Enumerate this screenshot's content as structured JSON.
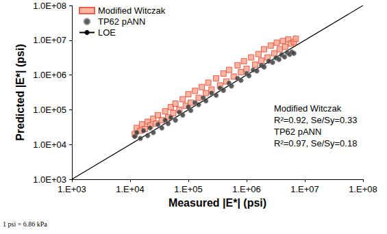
{
  "chart_data": {
    "type": "scatter",
    "x_label": "Measured |E*| (psi)",
    "y_label": "Predicted |E*| (psi)",
    "log": true,
    "grid": false,
    "legend": "top-left",
    "xlim": [
      1000,
      100000000
    ],
    "ylim": [
      1000,
      100000000
    ],
    "xticks": [
      {
        "value": 1000,
        "label": "1.E+03"
      },
      {
        "value": 10000,
        "label": "1.E+04"
      },
      {
        "value": 100000,
        "label": "1.E+05"
      },
      {
        "value": 1000000,
        "label": "1.E+06"
      },
      {
        "value": 10000000,
        "label": "1.E+07"
      },
      {
        "value": 100000000,
        "label": "1.E+08"
      }
    ],
    "yticks": [
      {
        "value": 1000,
        "label": "1.0E+03"
      },
      {
        "value": 10000,
        "label": "1.0E+04"
      },
      {
        "value": 100000,
        "label": "1.0E+05"
      },
      {
        "value": 1000000,
        "label": "1.0E+06"
      },
      {
        "value": 10000000,
        "label": "1.0E+07"
      },
      {
        "value": 100000000,
        "label": "1.0E+08"
      }
    ],
    "series": [
      {
        "name": "Modified Witczak",
        "type": "scatter",
        "marker": "square",
        "color": "#f9a48c",
        "x": [
          12000,
          13000,
          15000,
          16000,
          18000,
          20000,
          22000,
          25000,
          28000,
          30000,
          35000,
          40000,
          45000,
          50000,
          55000,
          60000,
          70000,
          80000,
          90000,
          100000,
          110000,
          130000,
          150000,
          170000,
          200000,
          220000,
          250000,
          300000,
          350000,
          400000,
          450000,
          500000,
          600000,
          700000,
          800000,
          900000,
          1000000,
          1200000,
          1400000,
          1600000,
          1800000,
          2000000,
          2300000,
          2600000,
          3000000,
          3300000,
          3700000,
          4200000,
          4600000,
          5200000,
          5800000,
          6500000,
          7000000
        ],
        "values": [
          20000,
          30000,
          25000,
          38000,
          28000,
          45000,
          35000,
          55000,
          40000,
          70000,
          50000,
          90000,
          60000,
          120000,
          80000,
          150000,
          100000,
          200000,
          130000,
          280000,
          160000,
          350000,
          220000,
          450000,
          300000,
          600000,
          380000,
          800000,
          500000,
          1100000,
          650000,
          1400000,
          900000,
          1900000,
          1200000,
          2500000,
          1500000,
          3200000,
          2000000,
          4000000,
          2600000,
          5500000,
          3200000,
          7000000,
          4200000,
          8500000,
          5500000,
          9500000,
          6500000,
          10500000,
          8000000,
          9000000,
          11000000
        ]
      },
      {
        "name": "TP62 pANN",
        "type": "scatter",
        "marker": "circle",
        "color": "#333333",
        "x": [
          12000,
          13000,
          15000,
          17000,
          20000,
          22000,
          25000,
          30000,
          35000,
          40000,
          45000,
          50000,
          60000,
          70000,
          80000,
          100000,
          110000,
          130000,
          150000,
          180000,
          200000,
          250000,
          300000,
          350000,
          400000,
          500000,
          550000,
          700000,
          800000,
          1000000,
          1100000,
          1300000,
          1500000,
          1800000,
          2000000,
          2400000,
          2800000,
          3200000,
          3600000,
          4000000,
          4500000,
          5000000,
          5500000,
          6000000,
          6500000
        ],
        "values": [
          17000,
          22000,
          15000,
          25000,
          18000,
          30000,
          22000,
          38000,
          30000,
          50000,
          40000,
          60000,
          50000,
          85000,
          70000,
          120000,
          95000,
          160000,
          140000,
          220000,
          180000,
          300000,
          260000,
          420000,
          360000,
          580000,
          480000,
          800000,
          700000,
          1100000,
          950000,
          1400000,
          1300000,
          1900000,
          1700000,
          2500000,
          2300000,
          3100000,
          2800000,
          3800000,
          3300000,
          4400000,
          3900000,
          4600000,
          4200000
        ]
      },
      {
        "name": "LOE",
        "type": "line",
        "line_style": "solid",
        "color": "#000000",
        "x": [
          1000,
          100000000
        ],
        "values": [
          1000,
          100000000
        ]
      }
    ],
    "annotations": [
      "Modified Witczak",
      "R²=0.92, Se/Sy=0.33",
      "TP62 pANN",
      "R²=0.97, Se/Sy=0.18"
    ],
    "footnote": "1 psi = 6.86 kPa"
  }
}
